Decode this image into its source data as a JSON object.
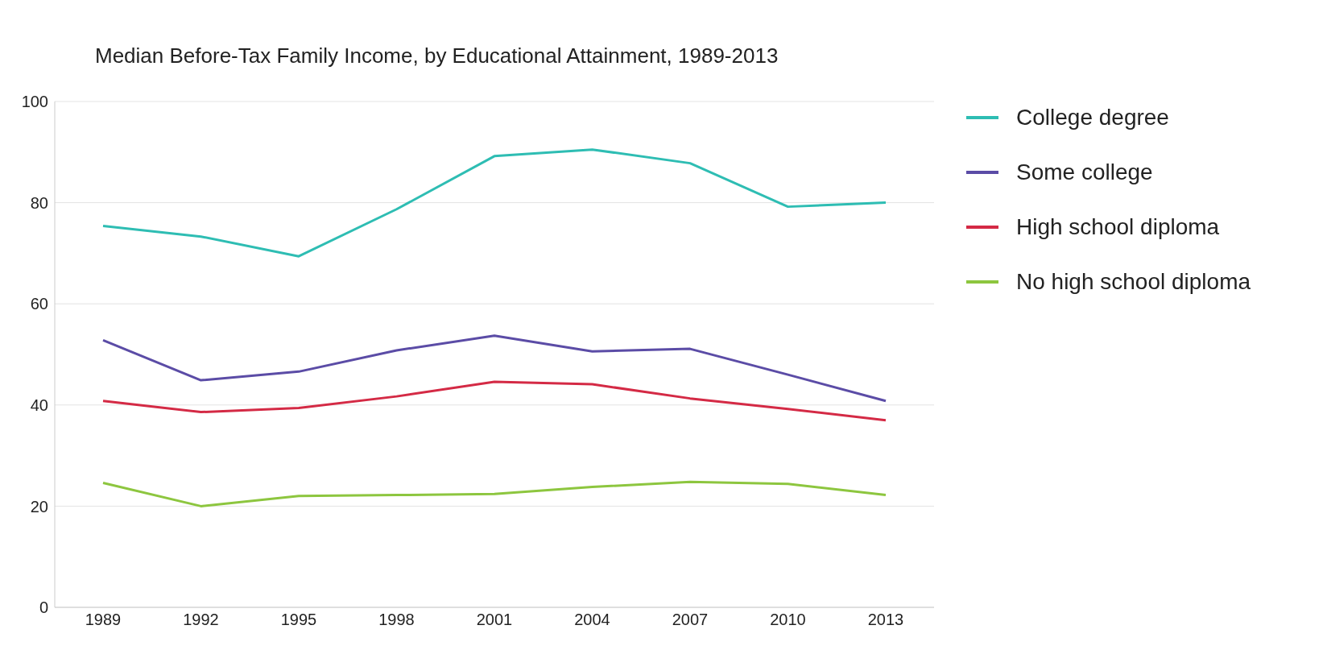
{
  "chart_data": {
    "type": "line",
    "title": "Median Before-Tax Family Income, by Educational Attainment, 1989-2013",
    "categories": [
      "1989",
      "1992",
      "1995",
      "1998",
      "2001",
      "2004",
      "2007",
      "2010",
      "2013"
    ],
    "series": [
      {
        "name": "College degree",
        "color": "#2ebdb3",
        "values": [
          75.4,
          73.3,
          69.4,
          78.7,
          89.2,
          90.5,
          87.8,
          79.2,
          80.0
        ]
      },
      {
        "name": "Some college",
        "color": "#5b4ca6",
        "values": [
          52.8,
          44.9,
          46.6,
          50.8,
          53.7,
          50.6,
          51.1,
          46.0,
          40.8
        ]
      },
      {
        "name": "High school diploma",
        "color": "#d42a45",
        "values": [
          40.8,
          38.6,
          39.4,
          41.7,
          44.6,
          44.1,
          41.3,
          39.2,
          37.0
        ]
      },
      {
        "name": "No high school diploma",
        "color": "#8dc63f",
        "values": [
          24.6,
          20.0,
          22.0,
          22.2,
          22.4,
          23.8,
          24.8,
          24.4,
          22.2
        ]
      }
    ],
    "ylim": [
      0,
      100
    ],
    "yticks": [
      0,
      20,
      40,
      60,
      80,
      100
    ],
    "grid": "y",
    "legend": "top right",
    "marker": "none",
    "line_style": "solid"
  }
}
